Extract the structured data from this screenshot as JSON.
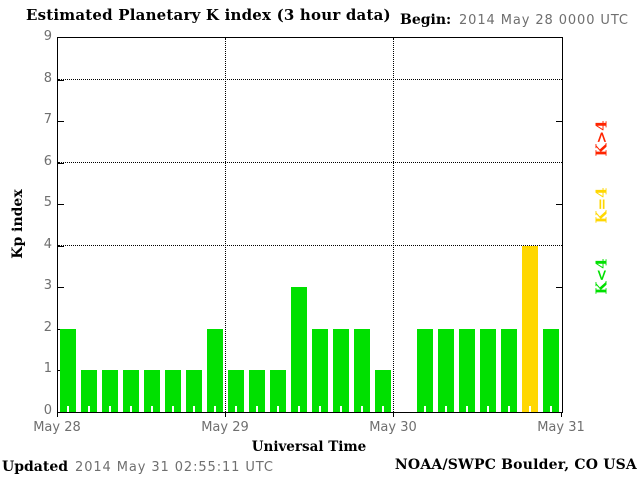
{
  "title": "Estimated Planetary K index (3 hour data)",
  "begin": {
    "label": "Begin:",
    "value": "2014 May 28 0000 UTC"
  },
  "footer": {
    "updated_label": "Updated",
    "updated_value": "2014 May 31 02:55:11 UTC",
    "credit": "NOAA/SWPC Boulder, CO USA"
  },
  "colors": {
    "bar_green": "#00e000",
    "bar_yellow": "#ffd700",
    "bar_red": "#ff2400",
    "axis": "#000000",
    "gray_text": "#6f6f6f"
  },
  "side_legend": [
    {
      "label": "K>4",
      "color": "#ff2400"
    },
    {
      "label": "K=4",
      "color": "#ffd700"
    },
    {
      "label": "K<4",
      "color": "#00e000"
    }
  ],
  "chart_data": {
    "type": "bar",
    "title": "Estimated Planetary K index (3 hour data)",
    "xlabel": "Universal Time",
    "ylabel": "Kp index",
    "ylim": [
      0,
      9
    ],
    "y_ticks": [
      0,
      1,
      2,
      3,
      4,
      5,
      6,
      7,
      8,
      9
    ],
    "h_gridlines_dotted_at_kp": [
      4,
      6,
      8
    ],
    "left_tick_values": [
      1,
      2,
      3,
      4,
      5,
      6,
      7,
      8
    ],
    "right_tick_values": [
      3,
      5,
      7
    ],
    "x_day_labels": [
      "May 28",
      "May 29",
      "May 30",
      "May 31"
    ],
    "v_gridlines_dotted_at_day": [
      1,
      2
    ],
    "bin_hours": 3,
    "bins_per_day": 8,
    "values": [
      2,
      1,
      1,
      1,
      1,
      1,
      1,
      2,
      1,
      1,
      1,
      3,
      2,
      2,
      2,
      1,
      null,
      2,
      2,
      2,
      2,
      2,
      4,
      2
    ],
    "color_rule": "green if Kp<4, yellow if Kp=4, red if Kp>4",
    "legend_position": "right-rotated"
  }
}
